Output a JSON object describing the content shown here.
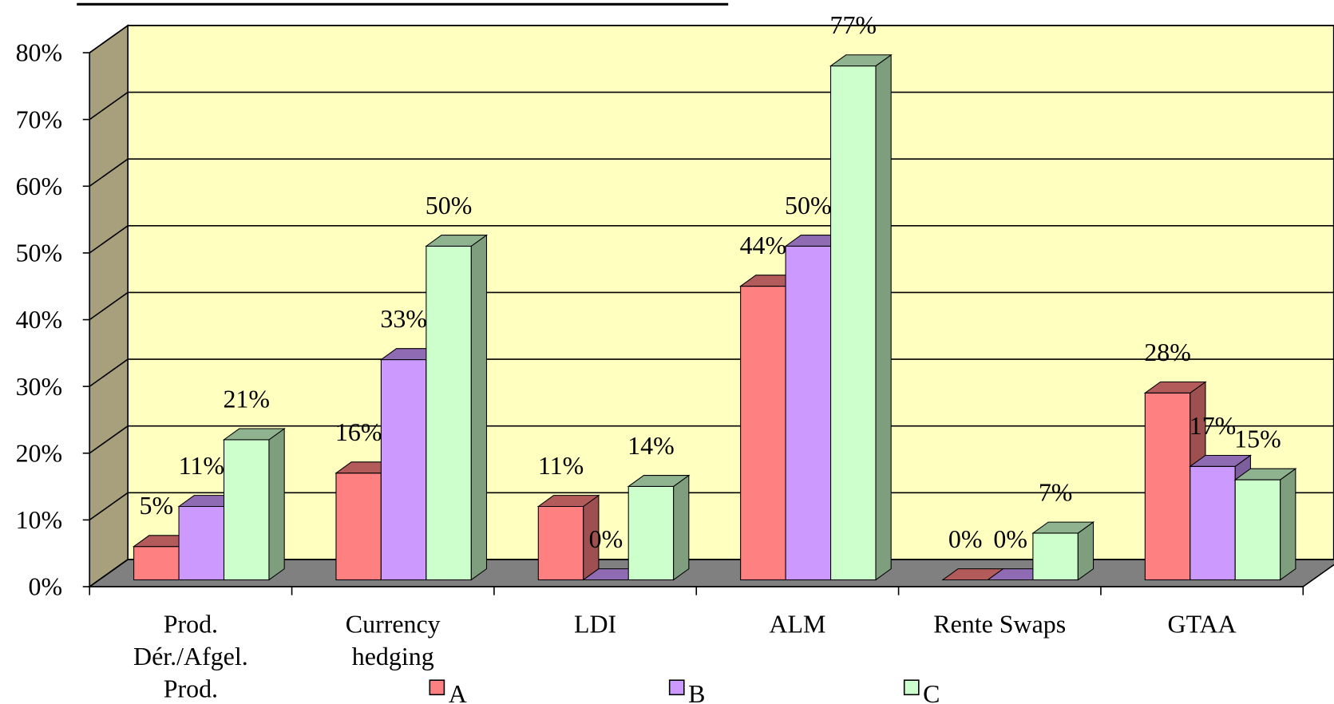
{
  "chart_data": {
    "type": "bar3d",
    "categories": [
      "Prod.\nDér./Afgel.\nProd.",
      "Currency\nhedging",
      "LDI",
      "ALM",
      "Rente Swaps",
      "GTAA"
    ],
    "series": [
      {
        "name": "A",
        "color": "#ff8080",
        "values": [
          5,
          16,
          11,
          44,
          0,
          28
        ],
        "value_labels": [
          "5%",
          "16%",
          "11%",
          "44%",
          "0%",
          "28%"
        ]
      },
      {
        "name": "B",
        "color": "#cc99ff",
        "values": [
          11,
          33,
          0,
          50,
          0,
          17
        ],
        "value_labels": [
          "11%",
          "33%",
          "0%",
          "50%",
          "0%",
          "17%"
        ]
      },
      {
        "name": "C",
        "color": "#ccffcc",
        "values": [
          21,
          50,
          14,
          77,
          7,
          15
        ],
        "value_labels": [
          "21%",
          "50%",
          "14%",
          "77%",
          "7%",
          "15%"
        ]
      }
    ],
    "ylim": [
      0,
      80
    ],
    "yticks": [
      {
        "value": 0,
        "label": "0%"
      },
      {
        "value": 10,
        "label": "10%"
      },
      {
        "value": 20,
        "label": "20%"
      },
      {
        "value": 30,
        "label": "30%"
      },
      {
        "value": 40,
        "label": "40%"
      },
      {
        "value": 50,
        "label": "50%"
      },
      {
        "value": 60,
        "label": "60%"
      },
      {
        "value": 70,
        "label": "70%"
      },
      {
        "value": 80,
        "label": "80%"
      }
    ],
    "grid": true,
    "legend": "bottom"
  }
}
